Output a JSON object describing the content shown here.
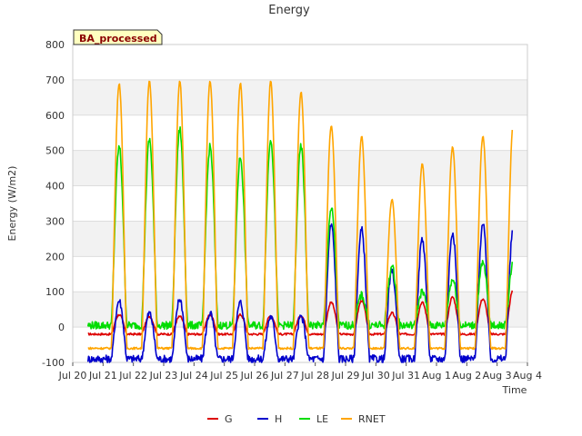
{
  "chart_data": {
    "type": "line",
    "title": "Energy",
    "xlabel": "Time",
    "ylabel": "Energy (W/m2)",
    "badge": "BA_processed",
    "ylim": [
      -100,
      800
    ],
    "yticks": [
      -100,
      0,
      100,
      200,
      300,
      400,
      500,
      600,
      700,
      800
    ],
    "xlim": [
      "Jul 20",
      "Aug 4"
    ],
    "xticks": [
      "Jul 20",
      "Jul 21",
      "Jul 22",
      "Jul 23",
      "Jul 24",
      "Jul 25",
      "Jul 26",
      "Jul 27",
      "Jul 28",
      "Jul 29",
      "Jul 30",
      "Jul 31",
      "Aug 1",
      "Aug 2",
      "Aug 3",
      "Aug 4"
    ],
    "grid": true,
    "legend_position": "bottom",
    "series_start": "Jul 20 12:00",
    "series_end": "Aug 3 12:00",
    "series": [
      {
        "name": "G",
        "color": "#dd0000",
        "daily_peak": [
          null,
          35,
          30,
          30,
          35,
          35,
          32,
          32,
          70,
          75,
          40,
          70,
          85,
          80,
          105,
          95
        ],
        "night_value": -20
      },
      {
        "name": "H",
        "color": "#0000cc",
        "daily_peak": [
          null,
          75,
          40,
          80,
          40,
          70,
          30,
          30,
          290,
          275,
          160,
          250,
          270,
          290,
          275,
          10
        ],
        "night_value": -90
      },
      {
        "name": "LE",
        "color": "#00dd00",
        "daily_peak": [
          null,
          510,
          530,
          560,
          510,
          480,
          535,
          510,
          335,
          90,
          170,
          100,
          135,
          180,
          180,
          20
        ],
        "night_value": 5
      },
      {
        "name": "RNET",
        "color": "#ffa500",
        "daily_peak": [
          null,
          690,
          695,
          695,
          695,
          690,
          695,
          665,
          570,
          540,
          360,
          460,
          510,
          540,
          570,
          -60
        ],
        "night_value": -60
      }
    ]
  }
}
